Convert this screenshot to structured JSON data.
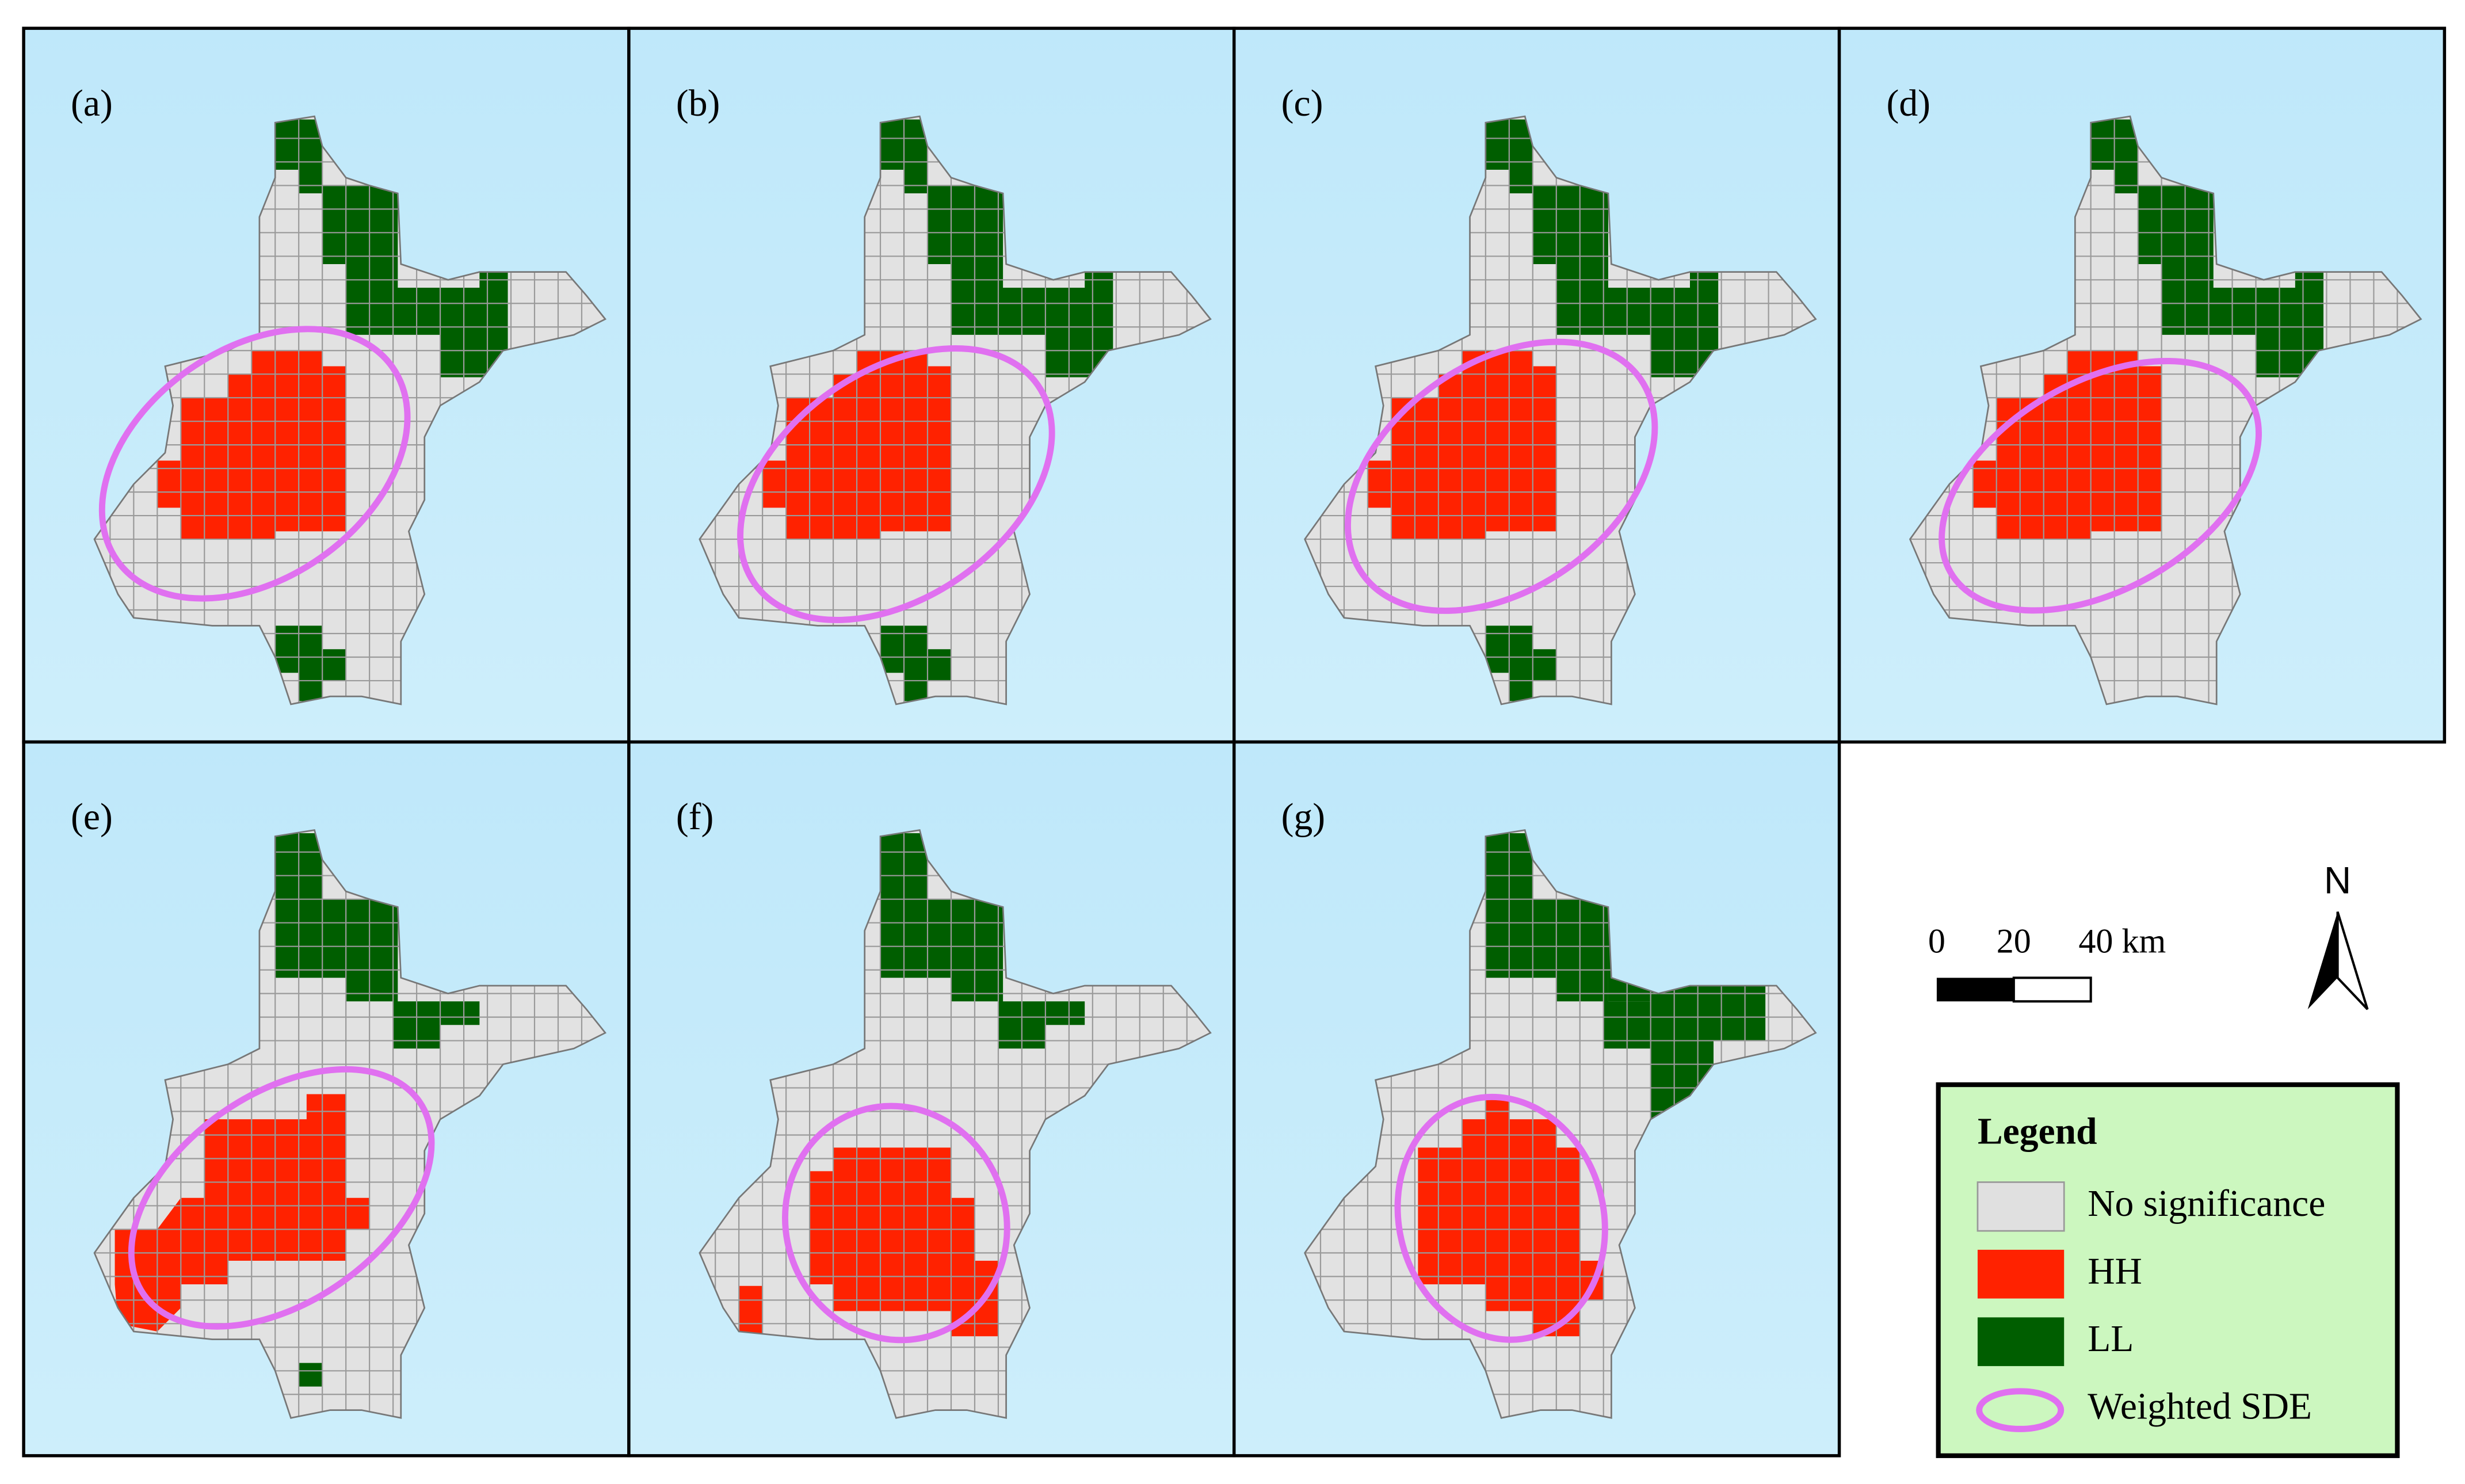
{
  "panels": [
    {
      "label": "(a)"
    },
    {
      "label": "(b)"
    },
    {
      "label": "(c)"
    },
    {
      "label": "(d)"
    },
    {
      "label": "(e)"
    },
    {
      "label": "(f)"
    },
    {
      "label": "(g)"
    }
  ],
  "scale_bar": {
    "labels": [
      "0",
      "20",
      "40 km"
    ]
  },
  "north_arrow": {
    "label": "N"
  },
  "legend": {
    "title": "Legend",
    "items": [
      "No significance",
      "HH",
      "LL",
      "Weighted SDE"
    ]
  }
}
